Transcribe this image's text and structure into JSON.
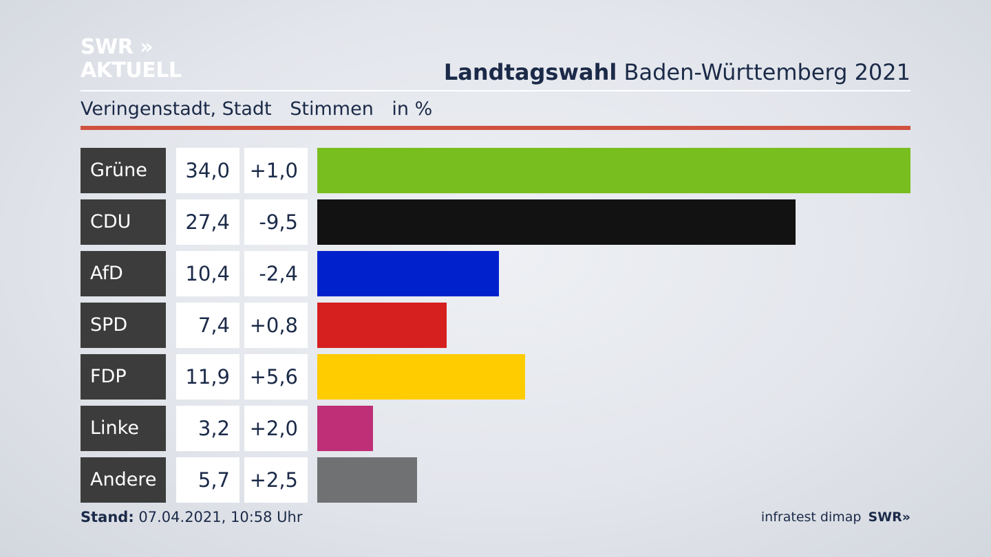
{
  "branding": {
    "logo_line1": "SWR »",
    "logo_line2": "AKTUELL",
    "footer_logo": "SWR»"
  },
  "header": {
    "title_bold": "Landtagswahl",
    "title_rest": " Baden-Württemberg 2021",
    "location": "Veringenstadt, Stadt",
    "measure": "Stimmen",
    "unit": "in %"
  },
  "footer": {
    "stand_label": "Stand:",
    "stand_value": " 07.04.2021, 10:58 Uhr",
    "source": "infratest dimap"
  },
  "colors": {
    "accent_rule": "#d1513f",
    "label_bg": "#3c3c3c"
  },
  "chart_data": {
    "type": "bar",
    "categories": [
      "Grüne",
      "CDU",
      "AfD",
      "SPD",
      "FDP",
      "Linke",
      "Andere"
    ],
    "values": [
      34.0,
      27.4,
      10.4,
      7.4,
      11.9,
      3.2,
      5.7
    ],
    "value_labels": [
      "34,0",
      "27,4",
      "10,4",
      "7,4",
      "11,9",
      "3,2",
      "5,7"
    ],
    "changes": [
      1.0,
      -9.5,
      -2.4,
      0.8,
      5.6,
      2.0,
      2.5
    ],
    "change_labels": [
      "+1,0",
      "-9,5",
      "-2,4",
      "+0,8",
      "+5,6",
      "+2,0",
      "+2,5"
    ],
    "bar_colors": [
      "#78be1e",
      "#121212",
      "#0021cc",
      "#d61f1f",
      "#ffcc00",
      "#be2f78",
      "#707173"
    ],
    "xlim": [
      0,
      34.0
    ],
    "ylabel": "Stimmen in %"
  }
}
